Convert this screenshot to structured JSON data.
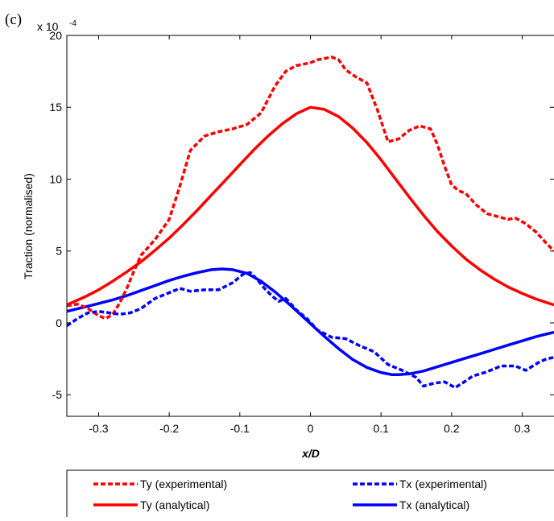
{
  "panel_label": "(c)",
  "chart_data": {
    "type": "line",
    "title": "",
    "xlabel": "x/D",
    "ylabel": "Traction (normalised)",
    "y_scale_label": "x 10",
    "y_scale_exponent": "-4",
    "xlim": [
      -0.345,
      0.345
    ],
    "ylim": [
      -6.5,
      20
    ],
    "x_ticks": [
      -0.3,
      -0.2,
      -0.1,
      0,
      0.1,
      0.2,
      0.3
    ],
    "x_tick_labels": [
      "-0.3",
      "-0.2",
      "-0.1",
      "0",
      "0.1",
      "0.2",
      "0.3"
    ],
    "y_ticks": [
      -5,
      0,
      5,
      10,
      15,
      20
    ],
    "y_tick_labels": [
      "-5",
      "0",
      "5",
      "10",
      "15",
      "20"
    ],
    "grid": false,
    "legend_position": "below plot",
    "series": [
      {
        "name": "Ty (experimental)",
        "color": "#ff0000",
        "dash": "dashed",
        "x": [
          -0.345,
          -0.33,
          -0.315,
          -0.3,
          -0.29,
          -0.28,
          -0.27,
          -0.26,
          -0.25,
          -0.24,
          -0.22,
          -0.2,
          -0.185,
          -0.17,
          -0.15,
          -0.13,
          -0.11,
          -0.09,
          -0.07,
          -0.05,
          -0.035,
          -0.02,
          -0.01,
          0.0,
          0.01,
          0.02,
          0.03,
          0.04,
          0.05,
          0.065,
          0.08,
          0.095,
          0.11,
          0.125,
          0.14,
          0.155,
          0.17,
          0.18,
          0.19,
          0.2,
          0.21,
          0.22,
          0.235,
          0.25,
          0.265,
          0.28,
          0.29,
          0.305,
          0.32,
          0.335,
          0.345
        ],
        "y": [
          1.2,
          1.3,
          1.0,
          0.5,
          0.3,
          0.6,
          1.4,
          2.4,
          3.6,
          4.7,
          5.8,
          7.2,
          9.5,
          12.0,
          13.0,
          13.3,
          13.5,
          13.8,
          14.6,
          16.5,
          17.5,
          17.9,
          18.0,
          18.1,
          18.3,
          18.4,
          18.5,
          18.3,
          17.6,
          17.1,
          16.7,
          14.8,
          12.6,
          12.8,
          13.4,
          13.7,
          13.5,
          12.4,
          10.9,
          9.6,
          9.2,
          9.0,
          8.2,
          7.6,
          7.4,
          7.2,
          7.3,
          6.9,
          6.3,
          5.5,
          5.0
        ]
      },
      {
        "name": "Ty (analytical)",
        "color": "#ff0000",
        "dash": "solid",
        "x": [
          -0.345,
          -0.32,
          -0.3,
          -0.28,
          -0.26,
          -0.24,
          -0.22,
          -0.2,
          -0.18,
          -0.16,
          -0.14,
          -0.12,
          -0.1,
          -0.08,
          -0.06,
          -0.04,
          -0.02,
          0.0,
          0.02,
          0.04,
          0.06,
          0.08,
          0.1,
          0.12,
          0.14,
          0.16,
          0.18,
          0.2,
          0.22,
          0.24,
          0.26,
          0.28,
          0.3,
          0.32,
          0.345
        ],
        "y": [
          1.25,
          1.8,
          2.3,
          2.9,
          3.55,
          4.25,
          5.05,
          5.9,
          6.85,
          7.85,
          8.9,
          9.95,
          11.0,
          12.05,
          13.0,
          13.85,
          14.55,
          15.0,
          14.85,
          14.35,
          13.55,
          12.55,
          11.35,
          10.05,
          8.75,
          7.5,
          6.35,
          5.35,
          4.45,
          3.7,
          3.05,
          2.5,
          2.05,
          1.65,
          1.25
        ]
      },
      {
        "name": "Tx (experimental)",
        "color": "#0000ff",
        "dash": "dashed",
        "x": [
          -0.345,
          -0.33,
          -0.315,
          -0.3,
          -0.285,
          -0.27,
          -0.255,
          -0.24,
          -0.22,
          -0.2,
          -0.185,
          -0.17,
          -0.15,
          -0.13,
          -0.11,
          -0.095,
          -0.085,
          -0.075,
          -0.065,
          -0.055,
          -0.045,
          -0.035,
          -0.02,
          -0.005,
          0.01,
          0.03,
          0.05,
          0.07,
          0.09,
          0.11,
          0.13,
          0.15,
          0.16,
          0.175,
          0.19,
          0.205,
          0.215,
          0.23,
          0.25,
          0.27,
          0.29,
          0.305,
          0.315,
          0.325,
          0.335,
          0.345
        ],
        "y": [
          -0.2,
          0.3,
          0.7,
          0.8,
          0.7,
          0.6,
          0.7,
          1.0,
          1.7,
          2.1,
          2.4,
          2.2,
          2.3,
          2.3,
          2.8,
          3.4,
          3.5,
          3.0,
          2.4,
          1.9,
          1.5,
          1.7,
          0.9,
          0.3,
          -0.5,
          -1.0,
          -1.1,
          -1.6,
          -2.0,
          -2.9,
          -3.3,
          -3.8,
          -4.4,
          -4.2,
          -4.1,
          -4.5,
          -4.2,
          -3.7,
          -3.4,
          -3.0,
          -3.0,
          -3.3,
          -3.0,
          -2.7,
          -2.5,
          -2.4
        ]
      },
      {
        "name": "Tx (analytical)",
        "color": "#0000ff",
        "dash": "solid",
        "x": [
          -0.345,
          -0.32,
          -0.3,
          -0.28,
          -0.26,
          -0.24,
          -0.22,
          -0.2,
          -0.18,
          -0.16,
          -0.14,
          -0.125,
          -0.11,
          -0.09,
          -0.07,
          -0.05,
          -0.03,
          -0.01,
          0.0,
          0.02,
          0.04,
          0.06,
          0.08,
          0.1,
          0.115,
          0.125,
          0.14,
          0.16,
          0.18,
          0.2,
          0.22,
          0.24,
          0.26,
          0.28,
          0.3,
          0.32,
          0.345
        ],
        "y": [
          0.8,
          1.1,
          1.35,
          1.6,
          1.9,
          2.25,
          2.6,
          2.95,
          3.25,
          3.5,
          3.7,
          3.75,
          3.7,
          3.45,
          2.9,
          2.15,
          1.3,
          0.4,
          -0.05,
          -0.95,
          -1.8,
          -2.55,
          -3.1,
          -3.45,
          -3.6,
          -3.6,
          -3.55,
          -3.35,
          -3.05,
          -2.75,
          -2.45,
          -2.15,
          -1.85,
          -1.55,
          -1.25,
          -0.95,
          -0.65
        ]
      }
    ]
  }
}
